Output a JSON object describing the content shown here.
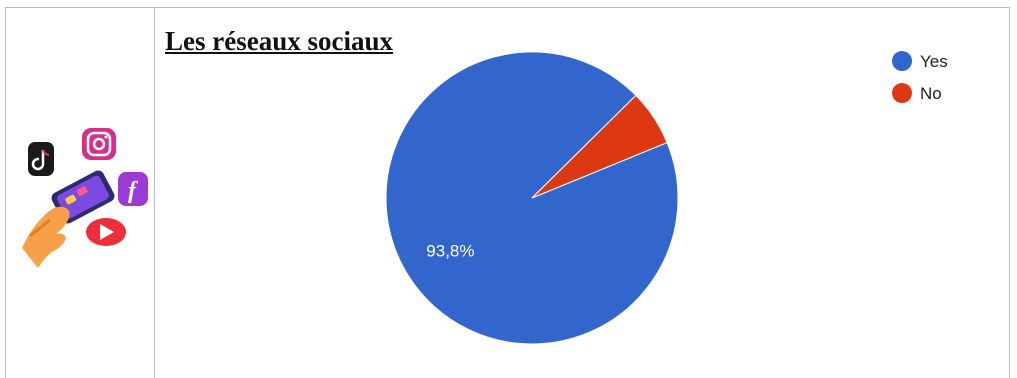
{
  "page": {
    "title": "Les réseaux sociaux"
  },
  "illustration": {
    "icons": [
      "tiktok-icon",
      "instagram-icon",
      "facebook-icon",
      "youtube-icon",
      "smartphone",
      "hand"
    ]
  },
  "chart_data": {
    "type": "pie",
    "title": "Les réseaux sociaux",
    "categories": [
      "Yes",
      "No"
    ],
    "values": [
      93.8,
      6.2
    ],
    "data_labels": [
      "93,8%",
      ""
    ],
    "colors": [
      "#3366CC",
      "#DC3912"
    ],
    "legend_position": "top-right"
  }
}
